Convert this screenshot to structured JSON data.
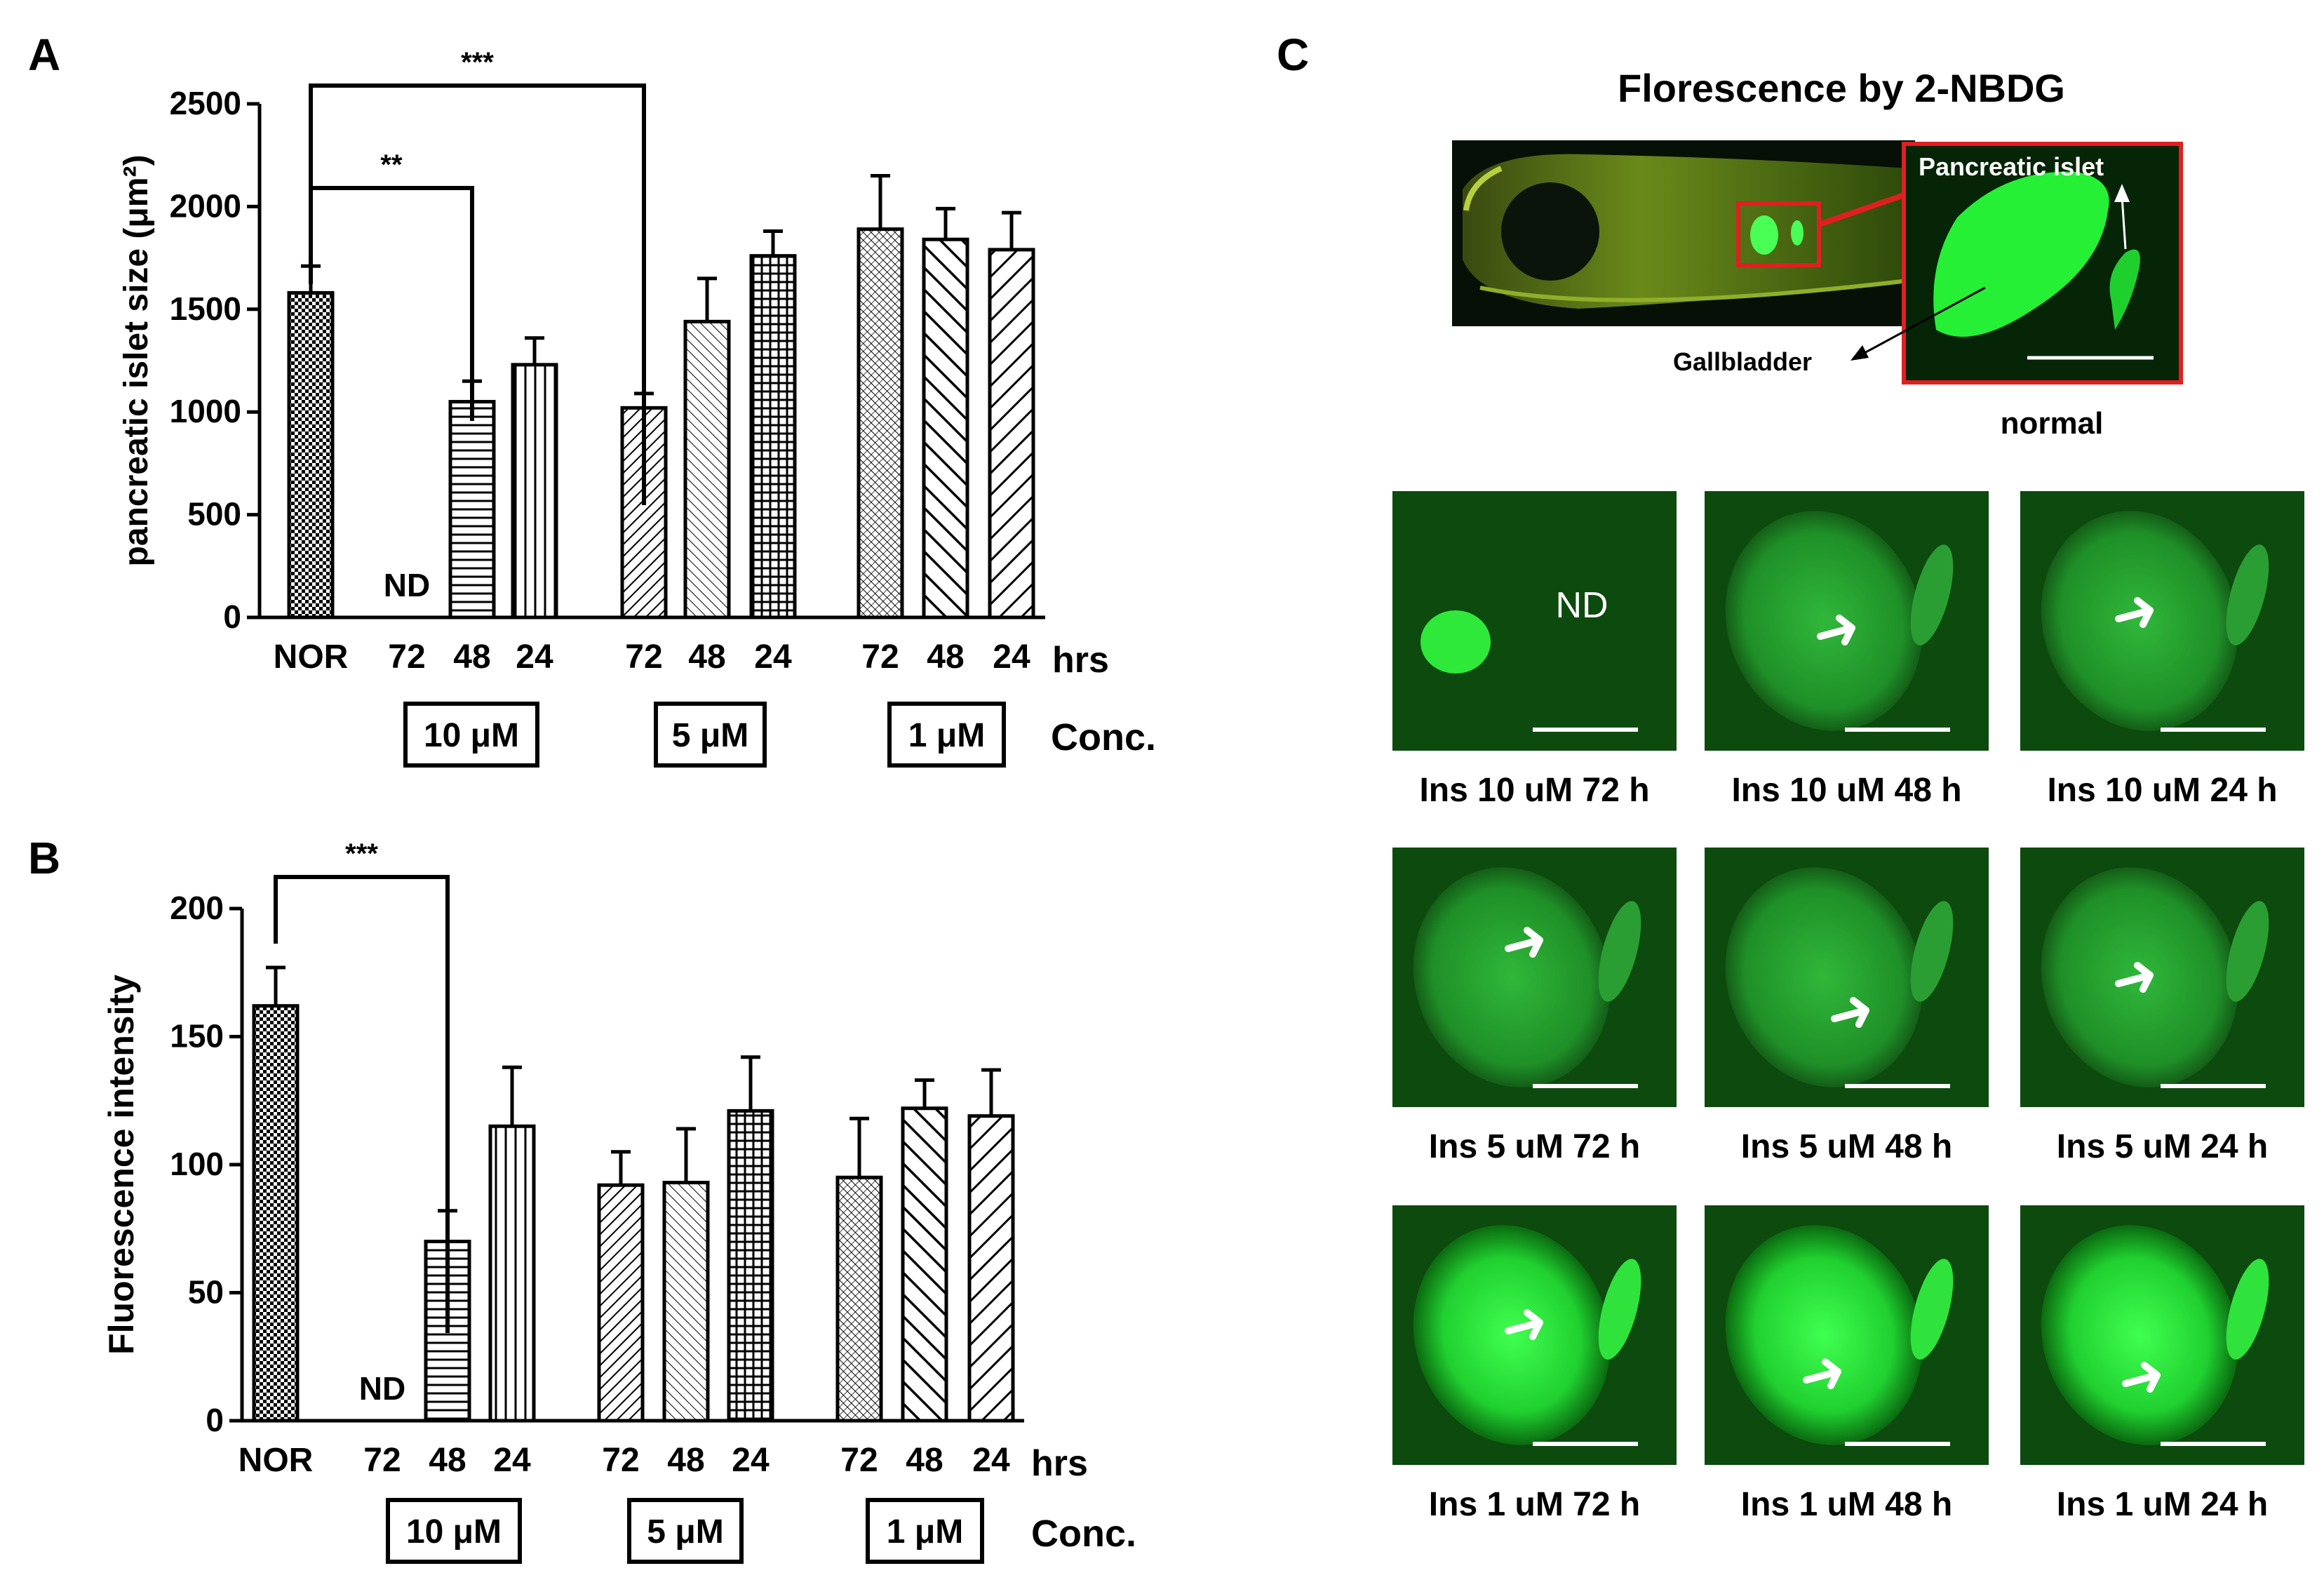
{
  "panels": {
    "A": "A",
    "B": "B",
    "C": "C"
  },
  "chart_data": [
    {
      "type": "bar",
      "panel": "A",
      "ylabel": "pancreatic islet size (μm²)",
      "ylim": [
        0,
        2500
      ],
      "yticks": [
        0,
        500,
        1000,
        1500,
        2000,
        2500
      ],
      "xlabel_unit": "hrs",
      "conc_label": "Conc.",
      "nd_label": "ND",
      "groups": [
        "10 μM",
        "5 μM",
        "1 μM"
      ],
      "categories": [
        "NOR",
        "72",
        "48",
        "24",
        "72",
        "48",
        "24",
        "72",
        "48",
        "24"
      ],
      "values": [
        1580,
        null,
        1050,
        1230,
        1020,
        1440,
        1760,
        1890,
        1840,
        1790
      ],
      "errors": [
        130,
        null,
        100,
        130,
        70,
        210,
        120,
        260,
        150,
        180
      ],
      "significance": [
        {
          "from": 0,
          "to": 2,
          "label": "**"
        },
        {
          "from": 0,
          "to": 4,
          "label": "***"
        }
      ]
    },
    {
      "type": "bar",
      "panel": "B",
      "ylabel": "Fluorescence intensity",
      "ylim": [
        0,
        200
      ],
      "yticks": [
        0,
        50,
        100,
        150,
        200
      ],
      "xlabel_unit": "hrs",
      "conc_label": "Conc.",
      "nd_label": "ND",
      "groups": [
        "10 μM",
        "5 μM",
        "1 μM"
      ],
      "categories": [
        "NOR",
        "72",
        "48",
        "24",
        "72",
        "48",
        "24",
        "72",
        "48",
        "24"
      ],
      "values": [
        162,
        null,
        70,
        115,
        92,
        93,
        121,
        95,
        122,
        119
      ],
      "errors": [
        15,
        null,
        12,
        23,
        13,
        21,
        21,
        23,
        11,
        18
      ],
      "significance": [
        {
          "from": 0,
          "to": 2,
          "label": "***"
        }
      ]
    }
  ],
  "panelC": {
    "title": "Florescence by 2-NBDG",
    "islet_label": "Pancreatic islet",
    "gallbladder_label": "Gallbladder",
    "normal_label": "normal",
    "nd_label": "ND",
    "captions": [
      "Ins 10 uM 72 h",
      "Ins 10 uM 48 h",
      "Ins 10 uM 24 h",
      "Ins 5 uM 72 h",
      "Ins 5 uM 48 h",
      "Ins 5 uM 24 h",
      "Ins 1 uM 72 h",
      "Ins 1 uM 48 h",
      "Ins 1 uM 24 h"
    ]
  },
  "colors": {
    "bar_stroke": "#000000",
    "fluor_green": "#2ee83a",
    "fluor_bg": "#0a3d0a",
    "inset_border": "#e02020"
  }
}
